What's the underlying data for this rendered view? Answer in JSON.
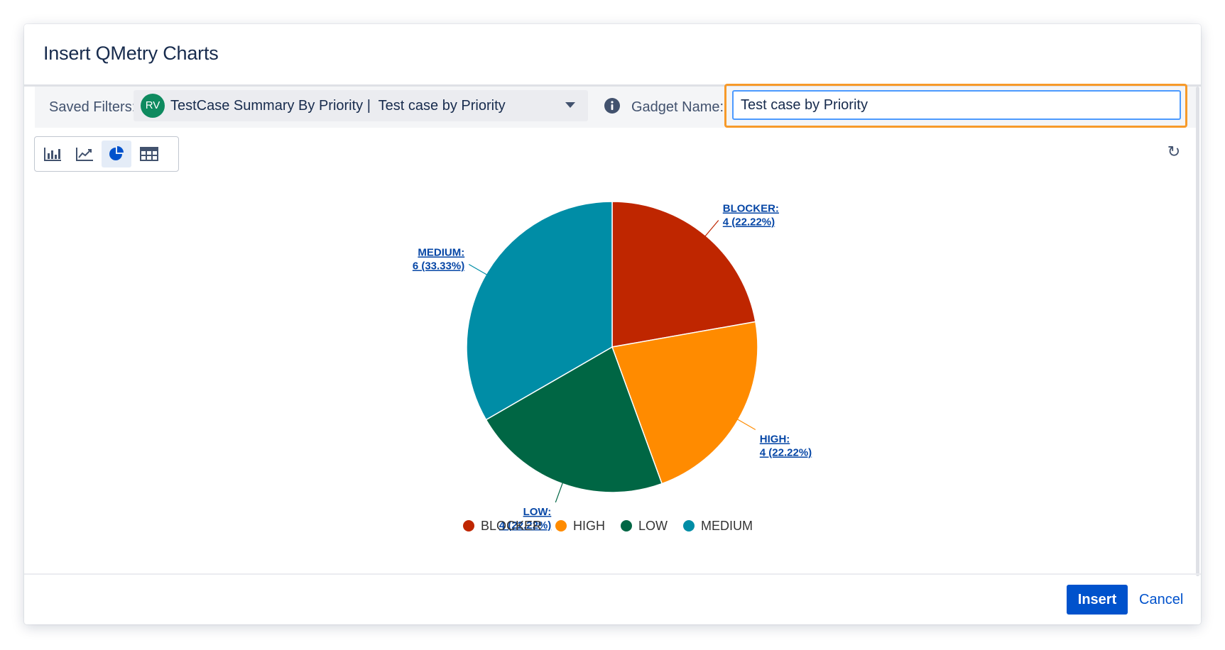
{
  "dialog": {
    "title": "Insert QMetry Charts"
  },
  "filters": {
    "saved_label": "Saved Filters:",
    "avatar_initials": "RV",
    "selected_filter": "TestCase Summary By Priority |  Test case by Priority",
    "gadget_label": "Gadget Name:",
    "gadget_value": "Test case by Priority"
  },
  "toolbar": {
    "buttons": [
      {
        "icon": "bar-chart-icon",
        "active": false
      },
      {
        "icon": "line-chart-icon",
        "active": false
      },
      {
        "icon": "pie-chart-icon",
        "active": true
      },
      {
        "icon": "table-icon",
        "active": false
      }
    ],
    "refresh_icon": "refresh-icon"
  },
  "chart_data": {
    "type": "pie",
    "categories": [
      "BLOCKER",
      "HIGH",
      "LOW",
      "MEDIUM"
    ],
    "values": [
      4,
      4,
      4,
      6
    ],
    "percentages": [
      "22.22%",
      "22.22%",
      "22.22%",
      "33.33%"
    ],
    "data_labels": [
      [
        "BLOCKER:",
        "4 (22.22%)"
      ],
      [
        "HIGH:",
        "4 (22.22%)"
      ],
      [
        "LOW:",
        "4 (22.22%)"
      ],
      [
        "MEDIUM:",
        "6 (33.33%)"
      ]
    ],
    "colors": [
      "#bf2600",
      "#ff8b00",
      "#006644",
      "#008da6"
    ],
    "legend": [
      "BLOCKER",
      "HIGH",
      "LOW",
      "MEDIUM"
    ],
    "legend_position": "bottom"
  },
  "footer": {
    "insert_label": "Insert",
    "cancel_label": "Cancel"
  },
  "colors": {
    "primary": "#0052cc",
    "focus_outline": "#f79a2a",
    "input_focus": "#4c9aff"
  }
}
